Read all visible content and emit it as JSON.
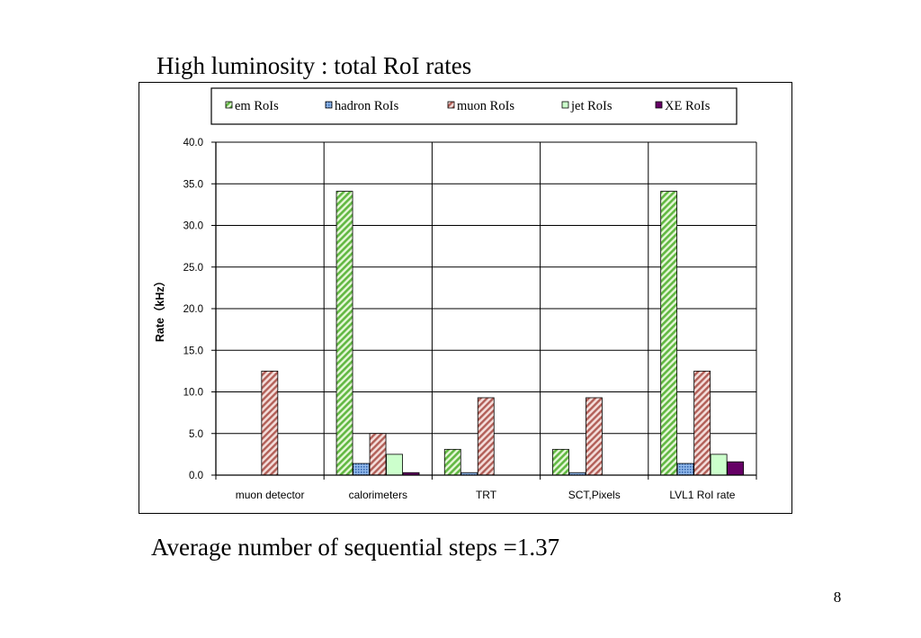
{
  "slide": {
    "title": "High luminosity : total RoI rates",
    "footer": "Average number of sequential steps =1.37",
    "page_number": "8"
  },
  "chart_data": {
    "type": "bar",
    "title": "",
    "xlabel": "",
    "ylabel": "Rate（kHz）",
    "ylim": [
      0,
      40
    ],
    "yticks": [
      "0.0",
      "5.0",
      "10.0",
      "15.0",
      "20.0",
      "25.0",
      "30.0",
      "35.0",
      "40.0"
    ],
    "grid": true,
    "legend_position": "top",
    "categories": [
      "muon detector",
      "calorimeters",
      "TRT",
      "SCT,Pixels",
      "LVL1 RoI rate"
    ],
    "series": [
      {
        "name": "em RoIs",
        "color": "#8fd16a",
        "pattern": "diagonal-green",
        "values": [
          0,
          34.1,
          3.1,
          3.1,
          34.1
        ]
      },
      {
        "name": "hadron RoIs",
        "color": "#5b8fd6",
        "pattern": "dotted-blue",
        "values": [
          0,
          1.4,
          0.3,
          0.3,
          1.4
        ]
      },
      {
        "name": "muon RoIs",
        "color": "#c9807a",
        "pattern": "diagonal-red",
        "values": [
          12.5,
          5.0,
          9.3,
          9.3,
          12.5
        ]
      },
      {
        "name": "jet RoIs",
        "color": "#ccffcc",
        "pattern": "solid-light-green",
        "values": [
          0,
          2.5,
          0,
          0,
          2.5
        ]
      },
      {
        "name": "XE RoIs",
        "color": "#660066",
        "pattern": "solid-purple",
        "values": [
          0,
          0.3,
          0,
          0,
          1.6
        ]
      }
    ]
  }
}
